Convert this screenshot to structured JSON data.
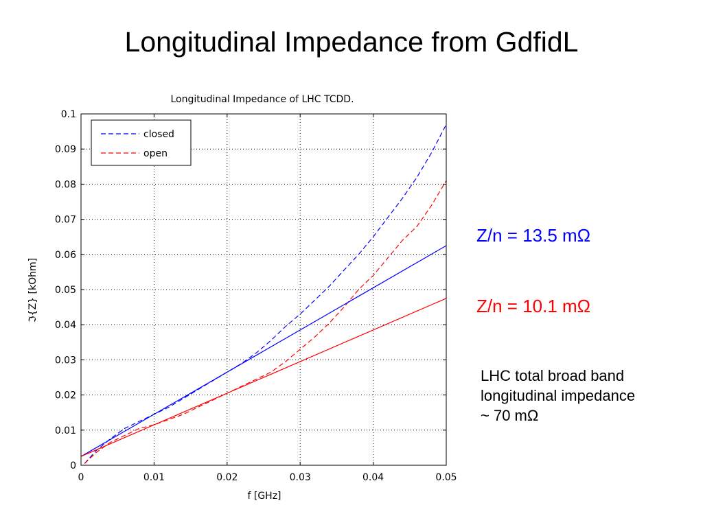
{
  "slide": {
    "title": "Longitudinal Impedance from GdfidL",
    "annotations": [
      {
        "text": "Z/n = 13.5 mΩ",
        "color": "#0000ff"
      },
      {
        "text": "Z/n = 10.1 mΩ",
        "color": "#ff0000"
      }
    ],
    "note_lines": [
      "LHC total broad band",
      "longitudinal impedance",
      "~ 70 mΩ"
    ]
  },
  "chart_data": {
    "type": "line",
    "title": "Longitudinal Impedance of LHC TCDD.",
    "xlabel": "f [GHz]",
    "ylabel": "ℑ{Z} [kOhm]",
    "xlim": [
      0,
      0.05
    ],
    "ylim": [
      0,
      0.1
    ],
    "xticks": [
      0,
      0.01,
      0.02,
      0.03,
      0.04,
      0.05
    ],
    "xtick_labels": [
      "0",
      "0.01",
      "0.02",
      "0.03",
      "0.04",
      "0.05"
    ],
    "yticks": [
      0,
      0.01,
      0.02,
      0.03,
      0.04,
      0.05,
      0.06,
      0.07,
      0.08,
      0.09,
      0.1
    ],
    "ytick_labels": [
      "0",
      "0.01",
      "0.02",
      "0.03",
      "0.04",
      "0.05",
      "0.06",
      "0.07",
      "0.08",
      "0.09",
      "0.1"
    ],
    "grid": true,
    "legend_position": "top-left",
    "series": [
      {
        "name": "closed",
        "color": "#0000ff",
        "dash": true,
        "x": [
          0.0005,
          0.002,
          0.004,
          0.006,
          0.008,
          0.01,
          0.012,
          0.014,
          0.016,
          0.018,
          0.02,
          0.022,
          0.024,
          0.026,
          0.028,
          0.03,
          0.032,
          0.034,
          0.036,
          0.038,
          0.04,
          0.042,
          0.044,
          0.046,
          0.048,
          0.05
        ],
        "y": [
          0.0005,
          0.004,
          0.0075,
          0.0105,
          0.0125,
          0.0145,
          0.0165,
          0.019,
          0.0215,
          0.024,
          0.0265,
          0.029,
          0.032,
          0.0355,
          0.0395,
          0.043,
          0.047,
          0.051,
          0.0555,
          0.06,
          0.065,
          0.0705,
          0.076,
          0.082,
          0.089,
          0.097
        ]
      },
      {
        "name": "open",
        "color": "#ff0000",
        "dash": true,
        "x": [
          0.0005,
          0.002,
          0.004,
          0.006,
          0.008,
          0.01,
          0.012,
          0.014,
          0.016,
          0.018,
          0.02,
          0.022,
          0.024,
          0.026,
          0.028,
          0.03,
          0.032,
          0.034,
          0.036,
          0.038,
          0.04,
          0.042,
          0.044,
          0.046,
          0.048,
          0.05
        ],
        "y": [
          0.0005,
          0.0035,
          0.0065,
          0.0085,
          0.0105,
          0.0115,
          0.013,
          0.0145,
          0.0165,
          0.0185,
          0.0205,
          0.0225,
          0.0245,
          0.0265,
          0.0295,
          0.033,
          0.0365,
          0.0405,
          0.045,
          0.05,
          0.054,
          0.059,
          0.064,
          0.068,
          0.074,
          0.081
        ]
      },
      {
        "color": "#0000ff",
        "dash": false,
        "x": [
          0,
          0.05
        ],
        "y": [
          0.0025,
          0.0625
        ]
      },
      {
        "color": "#ff0000",
        "dash": false,
        "x": [
          0,
          0.05
        ],
        "y": [
          0.0025,
          0.0475
        ]
      }
    ]
  }
}
